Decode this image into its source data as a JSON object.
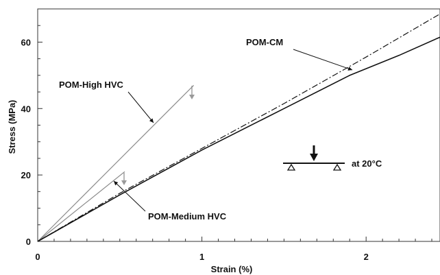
{
  "chart_data": {
    "type": "line",
    "xlabel": "Strain (%)",
    "ylabel": "Stress (MPa)",
    "xlim": [
      0,
      2.45
    ],
    "ylim": [
      0,
      70
    ],
    "xticks": [
      0,
      1,
      2
    ],
    "yticks": [
      0,
      20,
      40,
      60
    ],
    "grid": false,
    "series": [
      {
        "name": "POM-High HVC",
        "color": "#8a8a8a",
        "style": "solid",
        "x": [
          0,
          0.95
        ],
        "y": [
          0,
          47
        ]
      },
      {
        "name": "POM-Medium HVC",
        "color": "#8a8a8a",
        "style": "solid",
        "x": [
          0,
          0.53
        ],
        "y": [
          0,
          21
        ]
      },
      {
        "name": "POM-CM",
        "color": "#111111",
        "style": "solid",
        "x": [
          0,
          0.5,
          1.0,
          1.5,
          1.9,
          2.2,
          2.45
        ],
        "y": [
          0,
          14,
          27.5,
          40,
          50,
          56,
          61.5
        ]
      },
      {
        "name": "",
        "color": "#111111",
        "style": "dashdot",
        "x": [
          0,
          0.5,
          1.0,
          1.5,
          2.0,
          2.45
        ],
        "y": [
          0,
          14.5,
          28,
          41.5,
          55.5,
          68.5
        ]
      }
    ],
    "annotations": [
      {
        "text": "POM-High HVC",
        "target_series": 0
      },
      {
        "text": "POM-Medium HVC",
        "target_series": 1
      },
      {
        "text": "POM-CM",
        "target_series": 2
      },
      {
        "text": "at 20°C"
      }
    ]
  }
}
